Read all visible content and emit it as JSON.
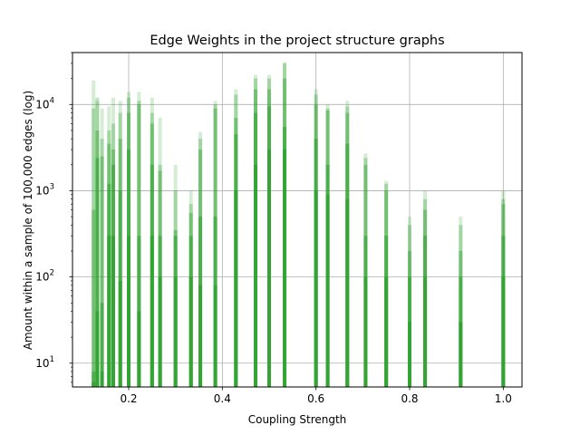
{
  "chart_data": {
    "type": "bar",
    "title": "Edge Weights in the project structure graphs",
    "xlabel": "Coupling Strength",
    "ylabel": "Amount within a sample of 100,000 edges (log)",
    "xscale": "linear",
    "yscale": "log",
    "xlim": [
      0.08,
      1.04
    ],
    "ylim": [
      5.3,
      40000
    ],
    "grid": true,
    "bar_color": "#2ca02c",
    "xticks": [
      {
        "value": 0.2,
        "label": "0.2"
      },
      {
        "value": 0.4,
        "label": "0.4"
      },
      {
        "value": 0.6,
        "label": "0.6"
      },
      {
        "value": 0.8,
        "label": "0.8"
      },
      {
        "value": 1.0,
        "label": "1.0"
      }
    ],
    "yticks": [
      {
        "value": 10,
        "base": "10",
        "exp": "1"
      },
      {
        "value": 100,
        "base": "10",
        "exp": "2"
      },
      {
        "value": 1000,
        "base": "10",
        "exp": "3"
      },
      {
        "value": 10000,
        "base": "10",
        "exp": "4"
      }
    ],
    "series": [
      {
        "opacity": 0.2,
        "values": [
          [
            0.125,
            19000
          ],
          [
            0.133,
            11000
          ],
          [
            0.143,
            9000
          ],
          [
            0.158,
            9500
          ],
          [
            0.167,
            12000
          ],
          [
            0.182,
            11000
          ],
          [
            0.2,
            14000
          ],
          [
            0.222,
            14000
          ],
          [
            0.25,
            12000
          ],
          [
            0.267,
            7000
          ],
          [
            0.3,
            2000
          ],
          [
            0.333,
            1000
          ],
          [
            0.353,
            4800
          ],
          [
            0.385,
            11000
          ],
          [
            0.429,
            15000
          ],
          [
            0.471,
            22000
          ],
          [
            0.5,
            22000
          ],
          [
            0.533,
            31000
          ],
          [
            0.6,
            15000
          ],
          [
            0.625,
            10000
          ],
          [
            0.667,
            11000
          ],
          [
            0.706,
            2700
          ],
          [
            0.75,
            1300
          ],
          [
            0.8,
            500
          ],
          [
            0.833,
            1000
          ],
          [
            0.909,
            500
          ],
          [
            1.0,
            1000
          ]
        ]
      },
      {
        "opacity": 0.3,
        "values": [
          [
            0.125,
            9000
          ],
          [
            0.133,
            12000
          ],
          [
            0.143,
            4000
          ],
          [
            0.158,
            5000
          ],
          [
            0.167,
            6000
          ],
          [
            0.182,
            8000
          ],
          [
            0.2,
            12000
          ],
          [
            0.222,
            11000
          ],
          [
            0.25,
            8000
          ],
          [
            0.267,
            2000
          ],
          [
            0.3,
            1000
          ],
          [
            0.333,
            700
          ],
          [
            0.353,
            4000
          ],
          [
            0.385,
            10000
          ],
          [
            0.429,
            13000
          ],
          [
            0.471,
            20000
          ],
          [
            0.5,
            20000
          ],
          [
            0.533,
            30000
          ],
          [
            0.6,
            13000
          ],
          [
            0.625,
            9000
          ],
          [
            0.667,
            9500
          ],
          [
            0.706,
            2400
          ],
          [
            0.75,
            1200
          ],
          [
            0.8,
            400
          ],
          [
            0.833,
            800
          ],
          [
            0.909,
            400
          ],
          [
            1.0,
            800
          ]
        ]
      },
      {
        "opacity": 0.4,
        "values": [
          [
            0.125,
            600
          ],
          [
            0.133,
            5000
          ],
          [
            0.143,
            2500
          ],
          [
            0.158,
            3500
          ],
          [
            0.167,
            3000
          ],
          [
            0.182,
            4000
          ],
          [
            0.2,
            8000
          ],
          [
            0.222,
            10000
          ],
          [
            0.25,
            6000
          ],
          [
            0.267,
            1700
          ],
          [
            0.3,
            350
          ],
          [
            0.333,
            550
          ],
          [
            0.353,
            3000
          ],
          [
            0.385,
            9000
          ],
          [
            0.429,
            7000
          ],
          [
            0.471,
            15000
          ],
          [
            0.5,
            15000
          ],
          [
            0.533,
            20000
          ],
          [
            0.6,
            10000
          ],
          [
            0.625,
            8500
          ],
          [
            0.667,
            8000
          ],
          [
            0.706,
            2000
          ],
          [
            0.75,
            1000
          ],
          [
            0.8,
            200
          ],
          [
            0.833,
            600
          ],
          [
            0.909,
            200
          ],
          [
            1.0,
            700
          ]
        ]
      },
      {
        "opacity": 0.55,
        "values": [
          [
            0.125,
            8
          ],
          [
            0.133,
            2400
          ],
          [
            0.143,
            50
          ],
          [
            0.158,
            1200
          ],
          [
            0.167,
            2000
          ],
          [
            0.182,
            1000
          ],
          [
            0.2,
            3000
          ],
          [
            0.222,
            300
          ],
          [
            0.25,
            2000
          ],
          [
            0.267,
            300
          ],
          [
            0.3,
            300
          ],
          [
            0.333,
            300
          ],
          [
            0.353,
            500
          ],
          [
            0.385,
            500
          ],
          [
            0.429,
            4500
          ],
          [
            0.471,
            8000
          ],
          [
            0.5,
            9500
          ],
          [
            0.533,
            5500
          ],
          [
            0.6,
            4000
          ],
          [
            0.625,
            2000
          ],
          [
            0.667,
            3500
          ],
          [
            0.706,
            300
          ],
          [
            0.75,
            300
          ],
          [
            0.8,
            100
          ],
          [
            0.833,
            300
          ],
          [
            0.909,
            100
          ],
          [
            1.0,
            300
          ]
        ]
      },
      {
        "opacity": 0.75,
        "values": [
          [
            0.125,
            6
          ],
          [
            0.133,
            40
          ],
          [
            0.143,
            8
          ],
          [
            0.158,
            300
          ],
          [
            0.167,
            300
          ],
          [
            0.182,
            90
          ],
          [
            0.2,
            300
          ],
          [
            0.222,
            40
          ],
          [
            0.25,
            300
          ],
          [
            0.267,
            100
          ],
          [
            0.3,
            100
          ],
          [
            0.333,
            100
          ],
          [
            0.353,
            80
          ],
          [
            0.385,
            80
          ],
          [
            0.429,
            1000
          ],
          [
            0.471,
            2000
          ],
          [
            0.5,
            3000
          ],
          [
            0.533,
            3000
          ],
          [
            0.6,
            1000
          ],
          [
            0.625,
            900
          ],
          [
            0.667,
            800
          ],
          [
            0.706,
            100
          ],
          [
            0.75,
            100
          ],
          [
            0.8,
            30
          ],
          [
            0.833,
            100
          ],
          [
            0.909,
            30
          ],
          [
            1.0,
            100
          ]
        ]
      }
    ]
  }
}
